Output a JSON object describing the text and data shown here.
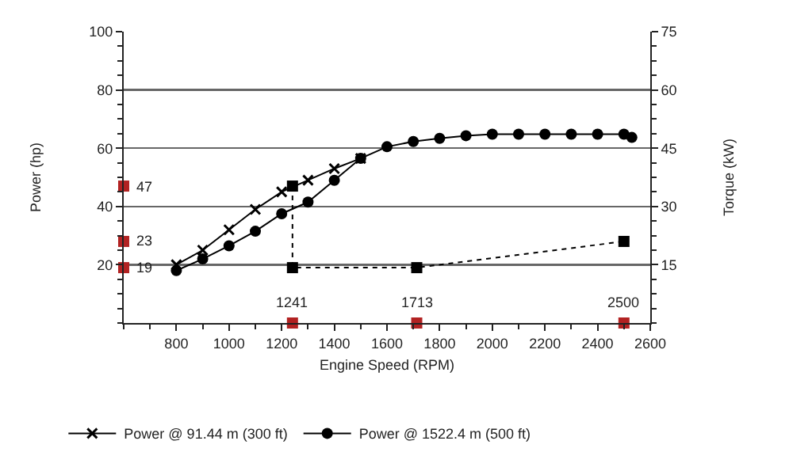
{
  "chart_data": {
    "type": "line",
    "xlabel": "Engine Speed (RPM)",
    "ylabel": "Power (hp)",
    "y2label": "Torque (kW)",
    "xlim": [
      600,
      2600
    ],
    "xticks": [
      800,
      1000,
      1200,
      1400,
      1600,
      1800,
      2000,
      2200,
      2400,
      2600
    ],
    "ylim": [
      0,
      100
    ],
    "yticks": [
      20,
      40,
      60,
      80,
      100
    ],
    "y2lim": [
      0,
      75
    ],
    "y2ticks": [
      15,
      30,
      45,
      60,
      75
    ],
    "grid": "y",
    "legend": "bottom",
    "series": [
      {
        "name": "Power @ 91.44 m (300 ft)",
        "color": "#000000",
        "marker": "cross",
        "line_style": "solid",
        "x": [
          800,
          900,
          1000,
          1100,
          1200,
          1300,
          1400,
          1500
        ],
        "values": [
          20,
          25,
          32,
          39,
          45,
          49,
          53,
          56.5
        ]
      },
      {
        "name": "Power @ 1522.4 m (500 ft)",
        "color": "#000000",
        "marker": "circle",
        "line_style": "solid",
        "x": [
          800,
          900,
          1000,
          1100,
          1200,
          1300,
          1400,
          1500,
          1600,
          1700,
          1800,
          1900,
          2000,
          2100,
          2200,
          2300,
          2400,
          2500,
          2530
        ],
        "values": [
          18,
          22,
          26.5,
          31.5,
          37.5,
          41.5,
          49,
          56.5,
          60.5,
          62.3,
          63.4,
          64.3,
          64.8,
          64.8,
          64.8,
          64.8,
          64.8,
          64.8,
          63.7
        ]
      },
      {
        "color": "#000000",
        "marker": "square",
        "line_style": "dotted",
        "x": [
          1241,
          1241,
          1713,
          2500
        ],
        "values": [
          47,
          19,
          19,
          28
        ]
      },
      {
        "type": "scatter",
        "color": "#b22222",
        "marker": "square",
        "x": [
          600,
          600,
          600,
          1241,
          1713,
          2500
        ],
        "values": [
          47,
          28,
          19,
          0,
          0,
          0
        ]
      }
    ],
    "annotations": [
      {
        "text": "47",
        "x": 600,
        "y": 47
      },
      {
        "text": "23",
        "x": 600,
        "y": 28
      },
      {
        "text": "19",
        "x": 600,
        "y": 19
      },
      {
        "text": "1241",
        "x": 1241,
        "y": 0
      },
      {
        "text": "1713",
        "x": 1713,
        "y": 0
      },
      {
        "text": "2500",
        "x": 2500,
        "y": 0
      }
    ]
  }
}
